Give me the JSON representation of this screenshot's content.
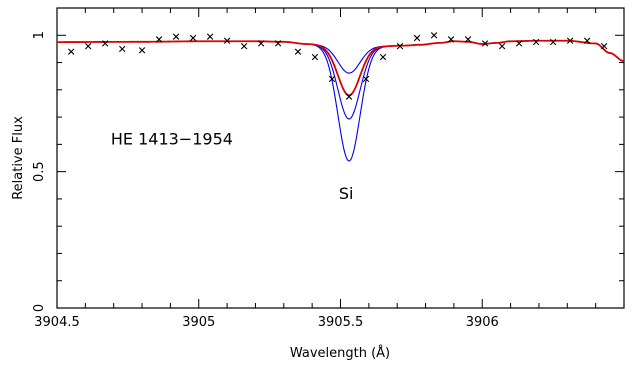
{
  "chart_data": {
    "type": "line",
    "xlabel": "Wavelength (Å)",
    "ylabel": "Relative Flux",
    "xlim": [
      3904.5,
      3906.5
    ],
    "ylim": [
      0,
      1.1
    ],
    "x_ticks": [
      {
        "value": 3904.5,
        "label": "3904.5"
      },
      {
        "value": 3905,
        "label": "3905"
      },
      {
        "value": 3905.5,
        "label": "3905.5"
      },
      {
        "value": 3906,
        "label": "3906"
      }
    ],
    "y_ticks": [
      {
        "value": 0,
        "label": "0"
      },
      {
        "value": 0.5,
        "label": "0.5"
      },
      {
        "value": 1,
        "label": "1"
      }
    ],
    "annotations": [
      {
        "text": "HE 1413−1954",
        "x": 3904.69,
        "y": 0.6
      },
      {
        "text": "Si",
        "x": 3905.52,
        "y": 0.4
      }
    ],
    "colors": {
      "observed": "#000000",
      "best_fit": "#dd0000",
      "alternatives": "#0000ee"
    },
    "line": {
      "center": 3905.53,
      "width": 0.055
    },
    "continuum": [
      [
        3904.5,
        0.975
      ],
      [
        3904.8,
        0.976
      ],
      [
        3905.0,
        0.978
      ],
      [
        3905.2,
        0.978
      ],
      [
        3905.3,
        0.976
      ],
      [
        3905.38,
        0.968
      ],
      [
        3905.45,
        0.965
      ],
      [
        3905.55,
        0.962
      ],
      [
        3905.65,
        0.96
      ],
      [
        3905.72,
        0.962
      ],
      [
        3905.78,
        0.965
      ],
      [
        3905.85,
        0.972
      ],
      [
        3905.9,
        0.978
      ],
      [
        3905.95,
        0.976
      ],
      [
        3906.0,
        0.968
      ],
      [
        3906.05,
        0.972
      ],
      [
        3906.1,
        0.978
      ],
      [
        3906.2,
        0.98
      ],
      [
        3906.3,
        0.98
      ],
      [
        3906.4,
        0.97
      ],
      [
        3906.45,
        0.935
      ],
      [
        3906.5,
        0.905
      ]
    ],
    "series": [
      {
        "role": "best_fit",
        "depth": 0.19
      },
      {
        "role": "alternative",
        "depth": 0.105
      },
      {
        "role": "alternative",
        "depth": 0.28
      },
      {
        "role": "alternative",
        "depth": 0.44
      }
    ],
    "observed": [
      [
        3904.55,
        0.94
      ],
      [
        3904.61,
        0.96
      ],
      [
        3904.67,
        0.97
      ],
      [
        3904.73,
        0.95
      ],
      [
        3904.8,
        0.945
      ],
      [
        3904.86,
        0.985
      ],
      [
        3904.92,
        0.995
      ],
      [
        3904.98,
        0.99
      ],
      [
        3905.04,
        0.995
      ],
      [
        3905.1,
        0.98
      ],
      [
        3905.16,
        0.96
      ],
      [
        3905.22,
        0.97
      ],
      [
        3905.28,
        0.97
      ],
      [
        3905.35,
        0.94
      ],
      [
        3905.41,
        0.92
      ],
      [
        3905.47,
        0.84
      ],
      [
        3905.53,
        0.775
      ],
      [
        3905.59,
        0.84
      ],
      [
        3905.65,
        0.92
      ],
      [
        3905.71,
        0.96
      ],
      [
        3905.77,
        0.99
      ],
      [
        3905.83,
        1.0
      ],
      [
        3905.89,
        0.985
      ],
      [
        3905.95,
        0.985
      ],
      [
        3906.01,
        0.97
      ],
      [
        3906.07,
        0.96
      ],
      [
        3906.13,
        0.97
      ],
      [
        3906.19,
        0.975
      ],
      [
        3906.25,
        0.975
      ],
      [
        3906.31,
        0.98
      ],
      [
        3906.37,
        0.98
      ],
      [
        3906.43,
        0.96
      ]
    ]
  }
}
